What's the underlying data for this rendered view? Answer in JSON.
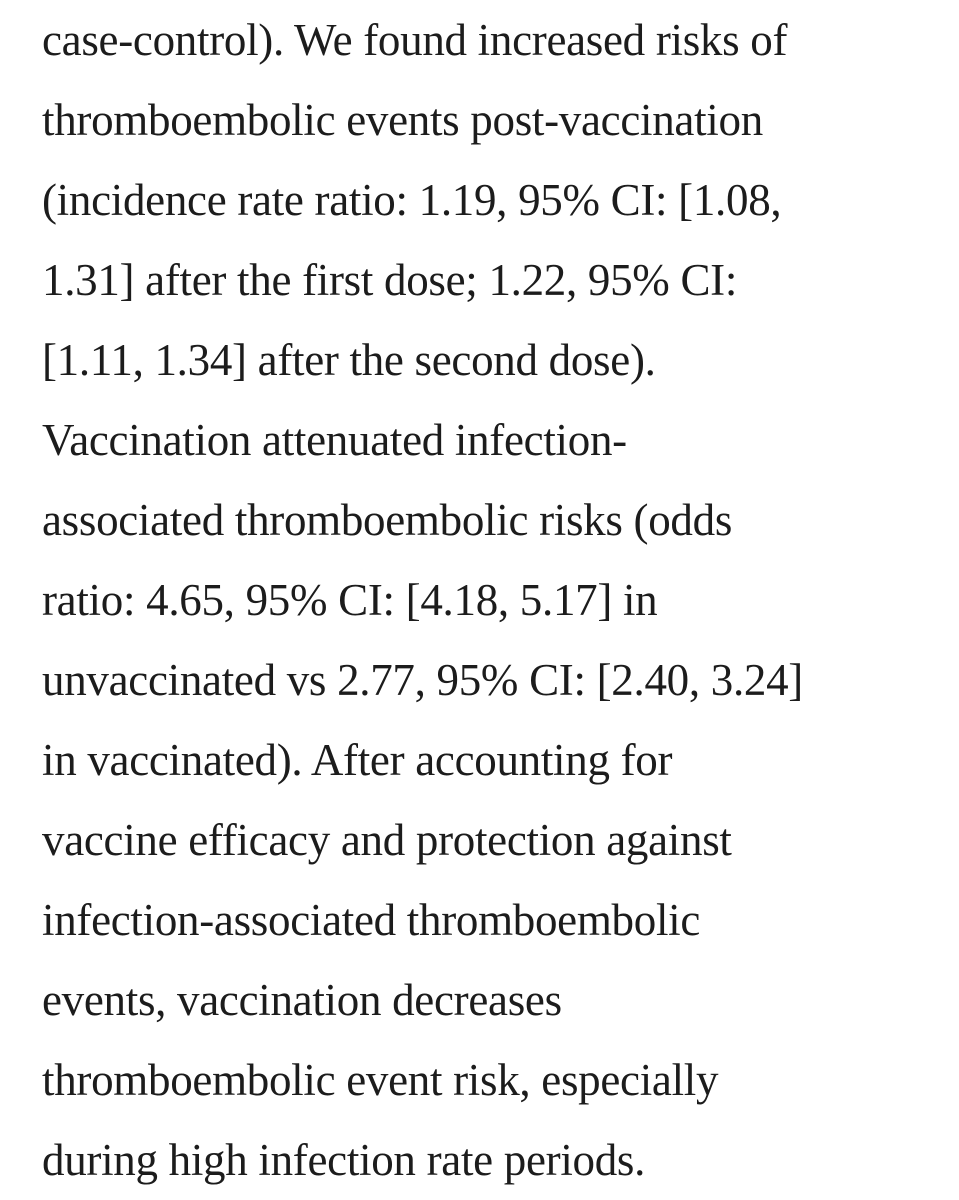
{
  "page": {
    "background_color": "#ffffff",
    "text_color": "#1c1c1c"
  },
  "abstract": {
    "lines": [
      "case-control). We found increased risks of",
      "thromboembolic events post-vaccination",
      "(incidence rate ratio: 1.19, 95% CI: [1.08,",
      "1.31] after the first dose; 1.22, 95% CI:",
      "[1.11, 1.34] after the second dose).",
      "Vaccination attenuated infection-",
      "associated thromboembolic risks (odds",
      "ratio: 4.65, 95% CI: [4.18, 5.17] in",
      "unvaccinated vs 2.77, 95% CI: [2.40, 3.24]",
      "in vaccinated). After accounting for",
      "vaccine efficacy and protection against",
      "infection-associated thromboembolic",
      "events, vaccination decreases",
      "thromboembolic event risk, especially",
      "during high infection rate periods."
    ],
    "full_text": "case-control). We found increased risks of thromboembolic events post-vaccination (incidence rate ratio: 1.19, 95% CI: [1.08, 1.31] after the first dose; 1.22, 95% CI: [1.11, 1.34] after the second dose). Vaccination attenuated infection-associated thromboembolic risks (odds ratio: 4.65, 95% CI: [4.18, 5.17] in unvaccinated vs 2.77, 95% CI: [2.40, 3.24] in vaccinated). After accounting for vaccine efficacy and protection against infection-associated thromboembolic events, vaccination decreases thromboembolic event risk, especially during high infection rate periods.",
    "reported_values": {
      "incidence_rate_ratio_first_dose": {
        "estimate": "1.19",
        "ci_95": "[1.08, 1.31]"
      },
      "incidence_rate_ratio_second_dose": {
        "estimate": "1.22",
        "ci_95": "[1.11, 1.34]"
      },
      "odds_ratio_unvaccinated": {
        "estimate": "4.65",
        "ci_95": "[4.18, 5.17]"
      },
      "odds_ratio_vaccinated": {
        "estimate": "2.77",
        "ci_95": "[2.40, 3.24]"
      }
    }
  }
}
